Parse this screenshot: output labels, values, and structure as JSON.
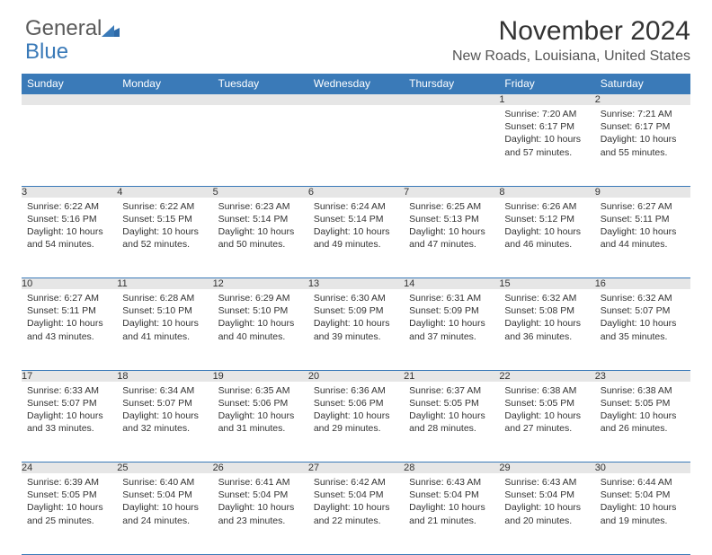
{
  "logo": {
    "part1": "General",
    "part2": "Blue"
  },
  "header": {
    "month_title": "November 2024",
    "location": "New Roads, Louisiana, United States"
  },
  "colors": {
    "header_bg": "#3a7ab8",
    "header_fg": "#ffffff",
    "daynum_bg": "#e6e6e6",
    "rule": "#3a7ab8",
    "text": "#333333"
  },
  "weekdays": [
    "Sunday",
    "Monday",
    "Tuesday",
    "Wednesday",
    "Thursday",
    "Friday",
    "Saturday"
  ],
  "weeks": [
    [
      null,
      null,
      null,
      null,
      null,
      {
        "n": "1",
        "l1": "Sunrise: 7:20 AM",
        "l2": "Sunset: 6:17 PM",
        "l3": "Daylight: 10 hours and 57 minutes."
      },
      {
        "n": "2",
        "l1": "Sunrise: 7:21 AM",
        "l2": "Sunset: 6:17 PM",
        "l3": "Daylight: 10 hours and 55 minutes."
      }
    ],
    [
      {
        "n": "3",
        "l1": "Sunrise: 6:22 AM",
        "l2": "Sunset: 5:16 PM",
        "l3": "Daylight: 10 hours and 54 minutes."
      },
      {
        "n": "4",
        "l1": "Sunrise: 6:22 AM",
        "l2": "Sunset: 5:15 PM",
        "l3": "Daylight: 10 hours and 52 minutes."
      },
      {
        "n": "5",
        "l1": "Sunrise: 6:23 AM",
        "l2": "Sunset: 5:14 PM",
        "l3": "Daylight: 10 hours and 50 minutes."
      },
      {
        "n": "6",
        "l1": "Sunrise: 6:24 AM",
        "l2": "Sunset: 5:14 PM",
        "l3": "Daylight: 10 hours and 49 minutes."
      },
      {
        "n": "7",
        "l1": "Sunrise: 6:25 AM",
        "l2": "Sunset: 5:13 PM",
        "l3": "Daylight: 10 hours and 47 minutes."
      },
      {
        "n": "8",
        "l1": "Sunrise: 6:26 AM",
        "l2": "Sunset: 5:12 PM",
        "l3": "Daylight: 10 hours and 46 minutes."
      },
      {
        "n": "9",
        "l1": "Sunrise: 6:27 AM",
        "l2": "Sunset: 5:11 PM",
        "l3": "Daylight: 10 hours and 44 minutes."
      }
    ],
    [
      {
        "n": "10",
        "l1": "Sunrise: 6:27 AM",
        "l2": "Sunset: 5:11 PM",
        "l3": "Daylight: 10 hours and 43 minutes."
      },
      {
        "n": "11",
        "l1": "Sunrise: 6:28 AM",
        "l2": "Sunset: 5:10 PM",
        "l3": "Daylight: 10 hours and 41 minutes."
      },
      {
        "n": "12",
        "l1": "Sunrise: 6:29 AM",
        "l2": "Sunset: 5:10 PM",
        "l3": "Daylight: 10 hours and 40 minutes."
      },
      {
        "n": "13",
        "l1": "Sunrise: 6:30 AM",
        "l2": "Sunset: 5:09 PM",
        "l3": "Daylight: 10 hours and 39 minutes."
      },
      {
        "n": "14",
        "l1": "Sunrise: 6:31 AM",
        "l2": "Sunset: 5:09 PM",
        "l3": "Daylight: 10 hours and 37 minutes."
      },
      {
        "n": "15",
        "l1": "Sunrise: 6:32 AM",
        "l2": "Sunset: 5:08 PM",
        "l3": "Daylight: 10 hours and 36 minutes."
      },
      {
        "n": "16",
        "l1": "Sunrise: 6:32 AM",
        "l2": "Sunset: 5:07 PM",
        "l3": "Daylight: 10 hours and 35 minutes."
      }
    ],
    [
      {
        "n": "17",
        "l1": "Sunrise: 6:33 AM",
        "l2": "Sunset: 5:07 PM",
        "l3": "Daylight: 10 hours and 33 minutes."
      },
      {
        "n": "18",
        "l1": "Sunrise: 6:34 AM",
        "l2": "Sunset: 5:07 PM",
        "l3": "Daylight: 10 hours and 32 minutes."
      },
      {
        "n": "19",
        "l1": "Sunrise: 6:35 AM",
        "l2": "Sunset: 5:06 PM",
        "l3": "Daylight: 10 hours and 31 minutes."
      },
      {
        "n": "20",
        "l1": "Sunrise: 6:36 AM",
        "l2": "Sunset: 5:06 PM",
        "l3": "Daylight: 10 hours and 29 minutes."
      },
      {
        "n": "21",
        "l1": "Sunrise: 6:37 AM",
        "l2": "Sunset: 5:05 PM",
        "l3": "Daylight: 10 hours and 28 minutes."
      },
      {
        "n": "22",
        "l1": "Sunrise: 6:38 AM",
        "l2": "Sunset: 5:05 PM",
        "l3": "Daylight: 10 hours and 27 minutes."
      },
      {
        "n": "23",
        "l1": "Sunrise: 6:38 AM",
        "l2": "Sunset: 5:05 PM",
        "l3": "Daylight: 10 hours and 26 minutes."
      }
    ],
    [
      {
        "n": "24",
        "l1": "Sunrise: 6:39 AM",
        "l2": "Sunset: 5:05 PM",
        "l3": "Daylight: 10 hours and 25 minutes."
      },
      {
        "n": "25",
        "l1": "Sunrise: 6:40 AM",
        "l2": "Sunset: 5:04 PM",
        "l3": "Daylight: 10 hours and 24 minutes."
      },
      {
        "n": "26",
        "l1": "Sunrise: 6:41 AM",
        "l2": "Sunset: 5:04 PM",
        "l3": "Daylight: 10 hours and 23 minutes."
      },
      {
        "n": "27",
        "l1": "Sunrise: 6:42 AM",
        "l2": "Sunset: 5:04 PM",
        "l3": "Daylight: 10 hours and 22 minutes."
      },
      {
        "n": "28",
        "l1": "Sunrise: 6:43 AM",
        "l2": "Sunset: 5:04 PM",
        "l3": "Daylight: 10 hours and 21 minutes."
      },
      {
        "n": "29",
        "l1": "Sunrise: 6:43 AM",
        "l2": "Sunset: 5:04 PM",
        "l3": "Daylight: 10 hours and 20 minutes."
      },
      {
        "n": "30",
        "l1": "Sunrise: 6:44 AM",
        "l2": "Sunset: 5:04 PM",
        "l3": "Daylight: 10 hours and 19 minutes."
      }
    ]
  ]
}
